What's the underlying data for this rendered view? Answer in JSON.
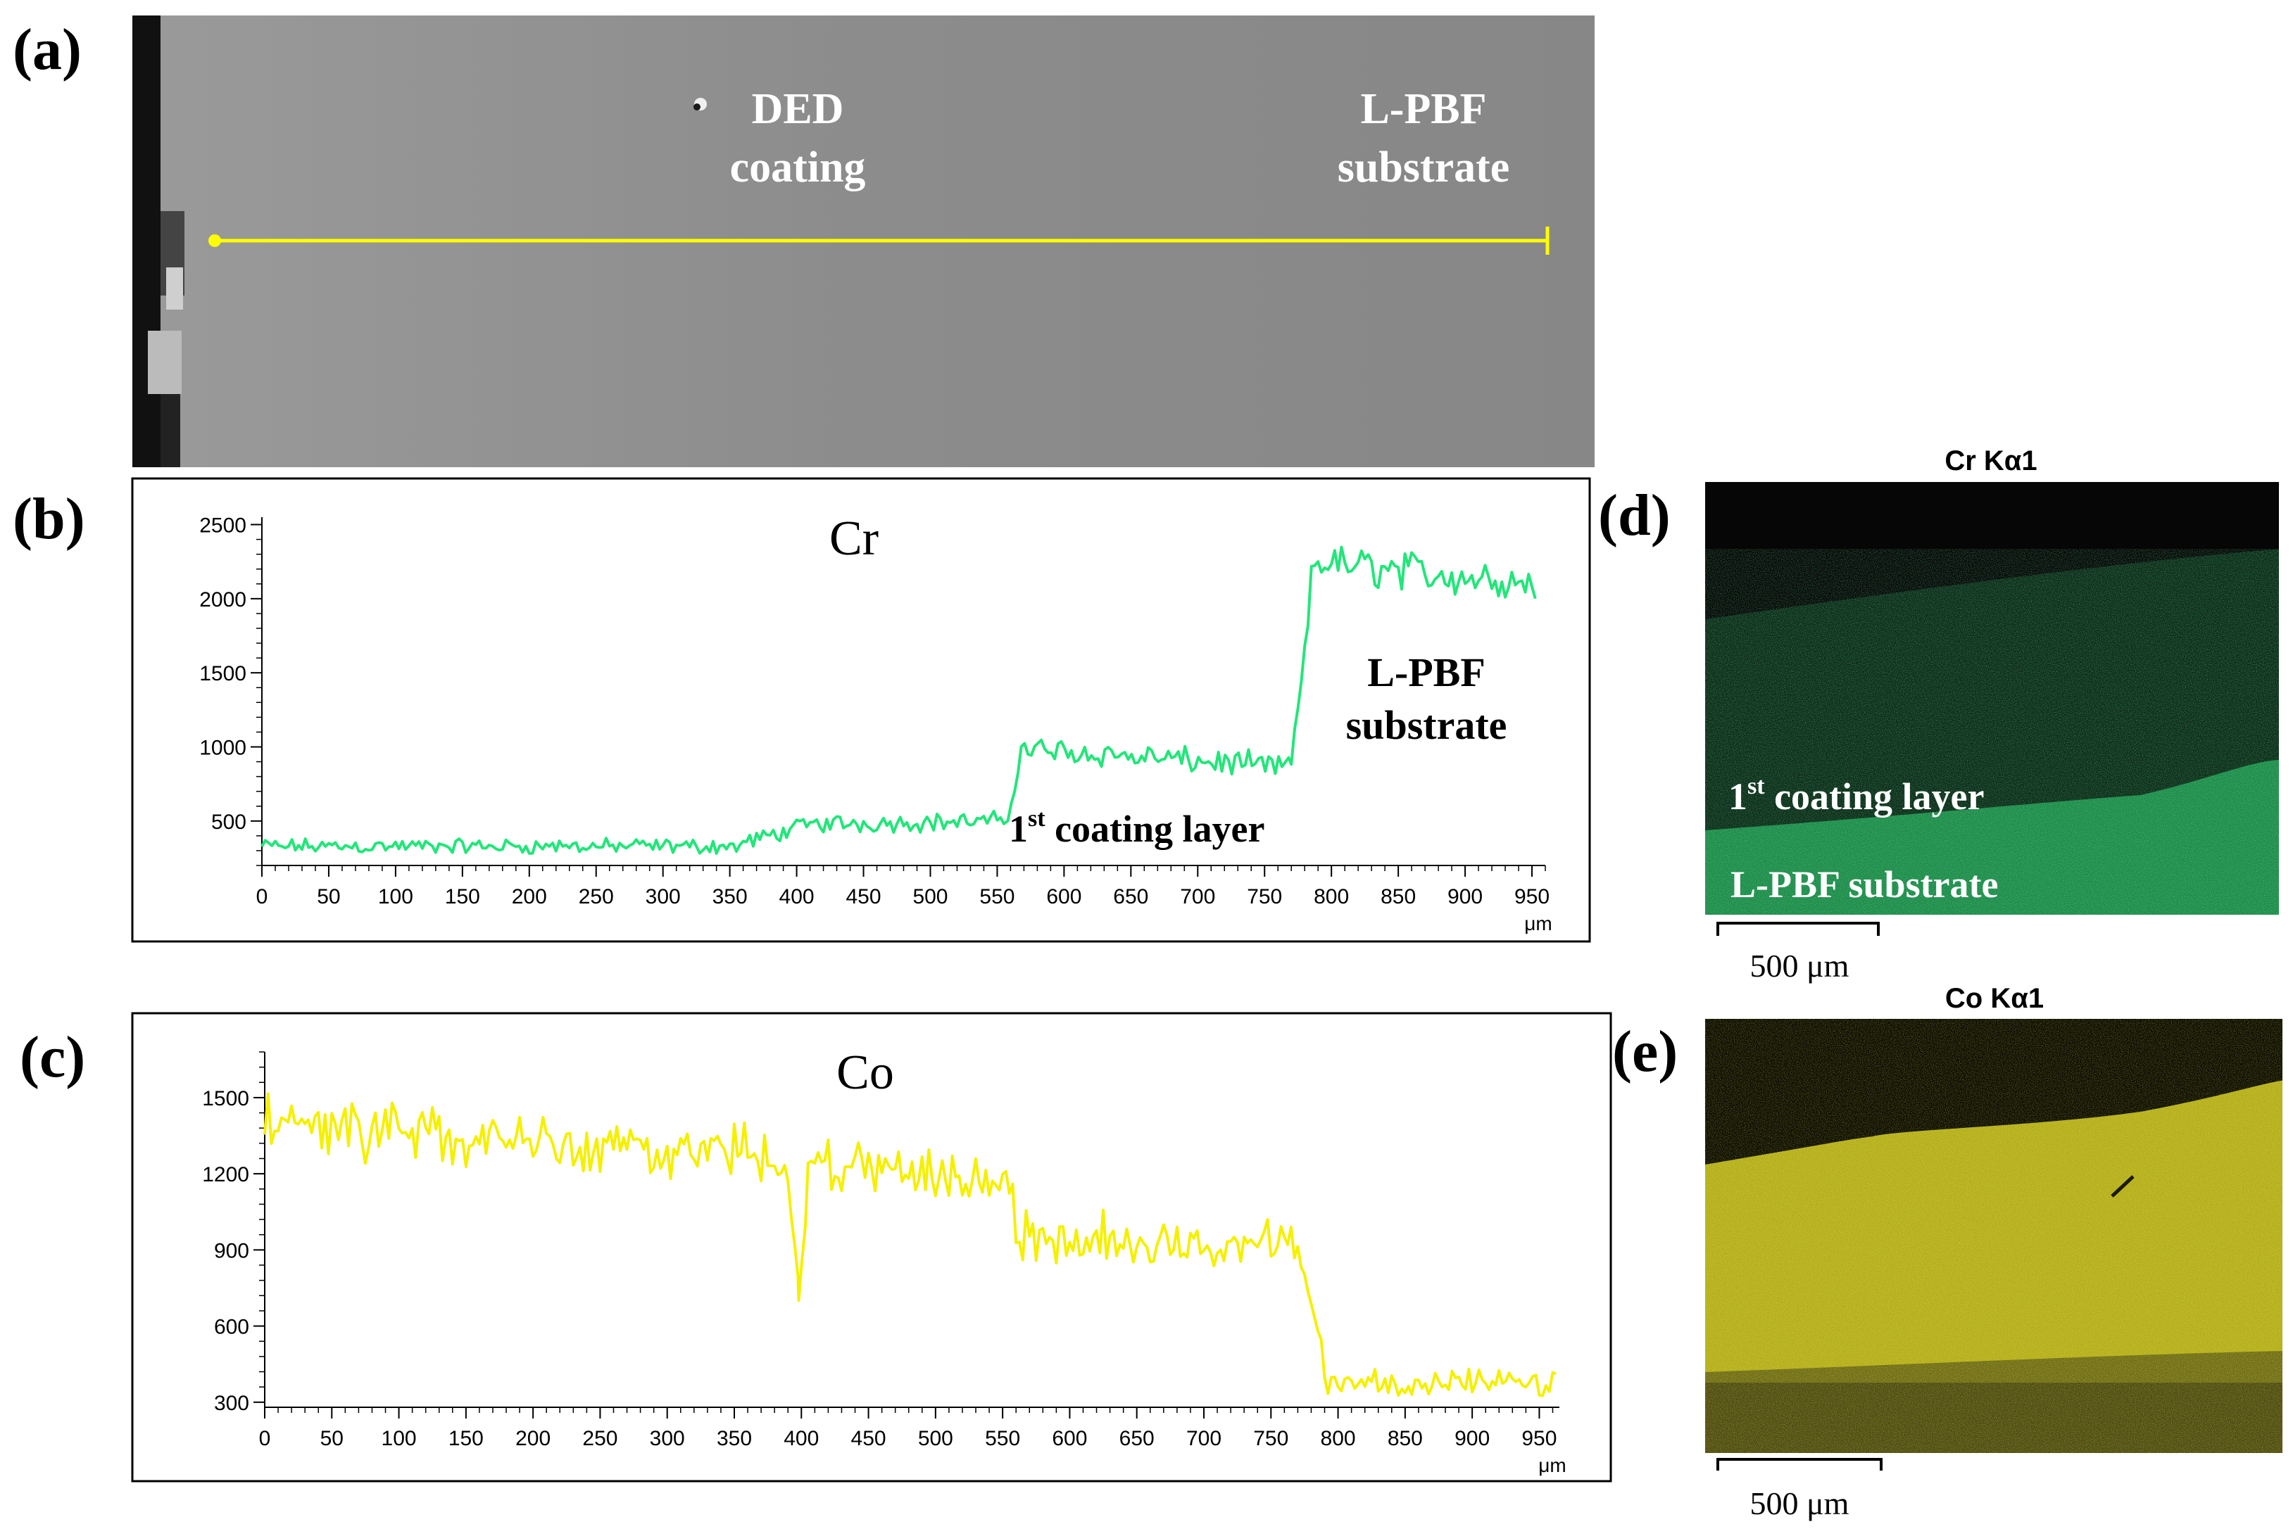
{
  "panels": {
    "a": {
      "tag": "(a)",
      "ded_line1": "DED",
      "ded_line2": "coating",
      "lpbf_line1": "L-PBF",
      "lpbf_line2": "substrate"
    },
    "b": {
      "tag": "(b)"
    },
    "c": {
      "tag": "(c)"
    },
    "d": {
      "tag": "(d)",
      "title": "Cr Kα1",
      "layer_sup": "st",
      "layer_num": "1",
      "layer_rest": " coating layer",
      "substrate": "L-PBF substrate",
      "scale": "500 μm"
    },
    "e": {
      "tag": "(e)",
      "title": "Co Kα1",
      "scale": "500 μm"
    }
  },
  "colors": {
    "cr_line": "#22e67a",
    "co_line": "#f5f000",
    "marker": "#ffff00"
  },
  "chart_data": [
    {
      "id": "cr",
      "type": "line",
      "title": "Cr",
      "xlabel": "μm",
      "ylabel": "",
      "xlim": [
        0,
        960
      ],
      "ylim": [
        200,
        2550
      ],
      "xticks": [
        0,
        50,
        100,
        150,
        200,
        250,
        300,
        350,
        400,
        450,
        500,
        550,
        600,
        650,
        700,
        750,
        800,
        850,
        900,
        950
      ],
      "yticks": [
        500,
        1000,
        1500,
        2000,
        2500
      ],
      "annotations": {
        "layer_num": "1",
        "layer_sup": "st",
        "layer_rest": " coating layer",
        "sub1": "L-PBF",
        "sub2": "substrate"
      },
      "segments": [
        {
          "x0": 0,
          "x1": 360,
          "y0": 330,
          "y1": 330,
          "amp": 45
        },
        {
          "x0": 360,
          "x1": 410,
          "y0": 350,
          "y1": 480,
          "amp": 50
        },
        {
          "x0": 410,
          "x1": 558,
          "y0": 480,
          "y1": 500,
          "amp": 55
        },
        {
          "x0": 558,
          "x1": 568,
          "y0": 520,
          "y1": 920,
          "amp": 20
        },
        {
          "x0": 568,
          "x1": 770,
          "y0": 990,
          "y1": 860,
          "amp": 75
        },
        {
          "x0": 770,
          "x1": 785,
          "y0": 900,
          "y1": 2000,
          "amp": 40
        },
        {
          "x0": 785,
          "x1": 955,
          "y0": 2250,
          "y1": 2100,
          "amp": 120
        }
      ]
    },
    {
      "id": "co",
      "type": "line",
      "title": "Co",
      "xlabel": "μm",
      "ylabel": "",
      "xlim": [
        0,
        965
      ],
      "ylim": [
        280,
        1680
      ],
      "xticks": [
        0,
        50,
        100,
        150,
        200,
        250,
        300,
        350,
        400,
        450,
        500,
        550,
        600,
        650,
        700,
        750,
        800,
        850,
        900,
        950
      ],
      "yticks": [
        300,
        600,
        900,
        1200,
        1500
      ],
      "segments": [
        {
          "x0": 0,
          "x1": 120,
          "y0": 1420,
          "y1": 1360,
          "amp": 110
        },
        {
          "x0": 120,
          "x1": 390,
          "y0": 1340,
          "y1": 1280,
          "amp": 95
        },
        {
          "x0": 390,
          "x1": 398,
          "y0": 1150,
          "y1": 780,
          "amp": 30
        },
        {
          "x0": 398,
          "x1": 405,
          "y0": 720,
          "y1": 1100,
          "amp": 30
        },
        {
          "x0": 405,
          "x1": 560,
          "y0": 1250,
          "y1": 1150,
          "amp": 90
        },
        {
          "x0": 560,
          "x1": 770,
          "y0": 950,
          "y1": 920,
          "amp": 85
        },
        {
          "x0": 770,
          "x1": 790,
          "y0": 900,
          "y1": 470,
          "amp": 30
        },
        {
          "x0": 790,
          "x1": 965,
          "y0": 380,
          "y1": 370,
          "amp": 45
        }
      ]
    }
  ]
}
